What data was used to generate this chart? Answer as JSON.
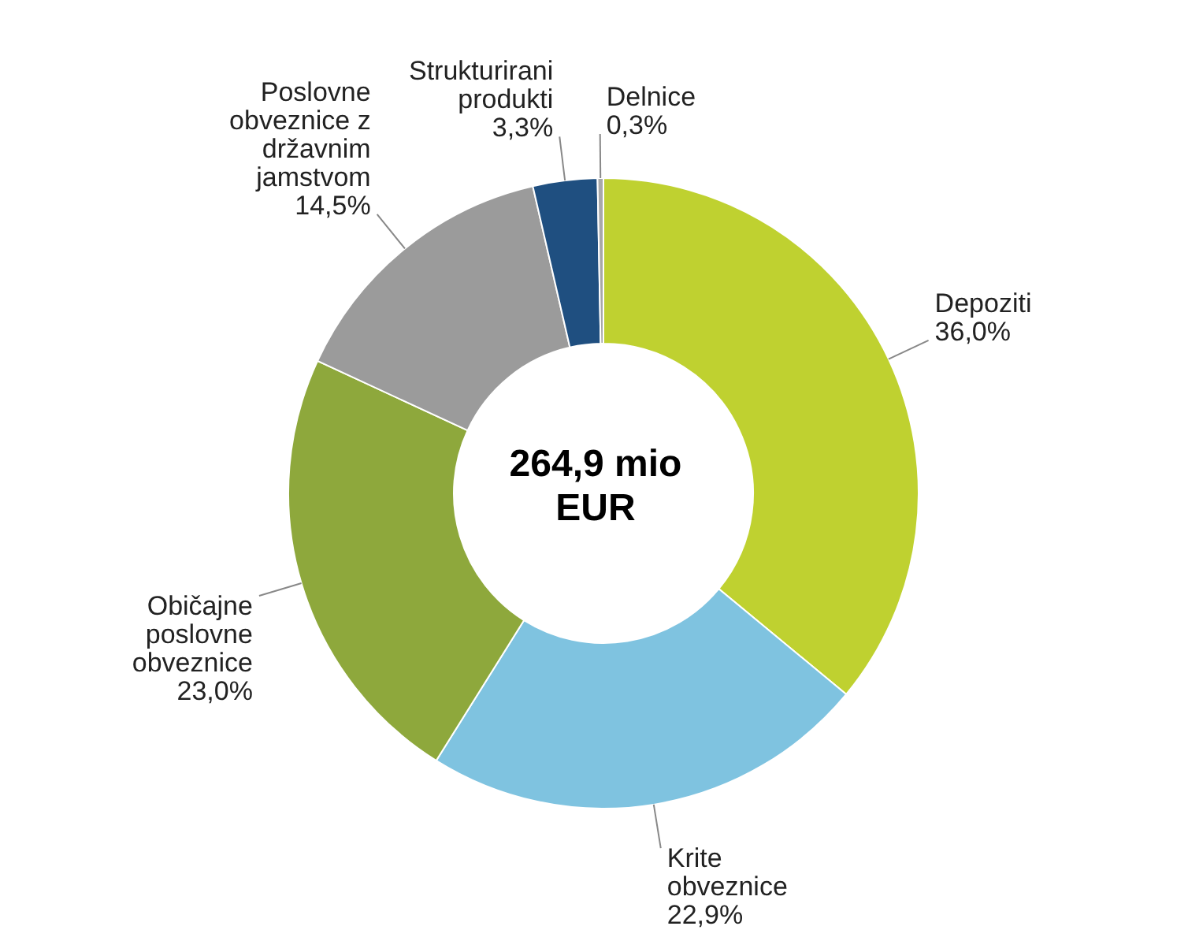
{
  "chart_data": {
    "type": "donut",
    "categories": [
      "Depoziti",
      "Krite obveznice",
      "Običajne poslovne obveznice",
      "Poslovne obveznice z državnim jamstvom",
      "Strukturirani produkti",
      "Delnice"
    ],
    "values": [
      36.0,
      22.9,
      23.0,
      14.5,
      3.3,
      0.3
    ],
    "value_labels": [
      "36,0%",
      "22,9%",
      "23,0%",
      "14,5%",
      "3,3%",
      "0,3%"
    ],
    "colors": [
      "#bfd130",
      "#7fc3e0",
      "#8ea83c",
      "#9b9b9b",
      "#1f4f80",
      "#a8a8a8"
    ],
    "annotations": [
      "264,9 mio EUR"
    ],
    "legend": false
  }
}
